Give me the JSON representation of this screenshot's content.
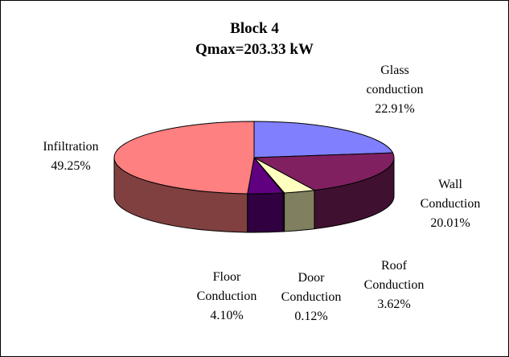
{
  "chart_data": {
    "type": "pie",
    "title": "Block 4",
    "subtitle": "Qmax=203.33  kW",
    "slices": [
      {
        "label_lines": [
          "Glass",
          "conduction"
        ],
        "value": 22.91,
        "value_label": "22.91%",
        "color": "#8080ff",
        "side_color": "#4040a0"
      },
      {
        "label_lines": [
          "Wall",
          "Conduction"
        ],
        "value": 20.01,
        "value_label": "20.01%",
        "color": "#802060",
        "side_color": "#401030"
      },
      {
        "label_lines": [
          "Roof",
          "Conduction"
        ],
        "value": 3.62,
        "value_label": "3.62%",
        "color": "#ffffc0",
        "side_color": "#808060"
      },
      {
        "label_lines": [
          "Door",
          "Conduction"
        ],
        "value": 0.12,
        "value_label": "0.12%",
        "color": "#a0e0e0",
        "side_color": "#507070"
      },
      {
        "label_lines": [
          "Floor",
          "Conduction"
        ],
        "value": 4.1,
        "value_label": "4.10%",
        "color": "#600080",
        "side_color": "#300040"
      },
      {
        "label_lines": [
          "Infiltration"
        ],
        "value": 49.25,
        "value_label": "49.25%",
        "color": "#ff8080",
        "side_color": "#804040"
      }
    ]
  }
}
